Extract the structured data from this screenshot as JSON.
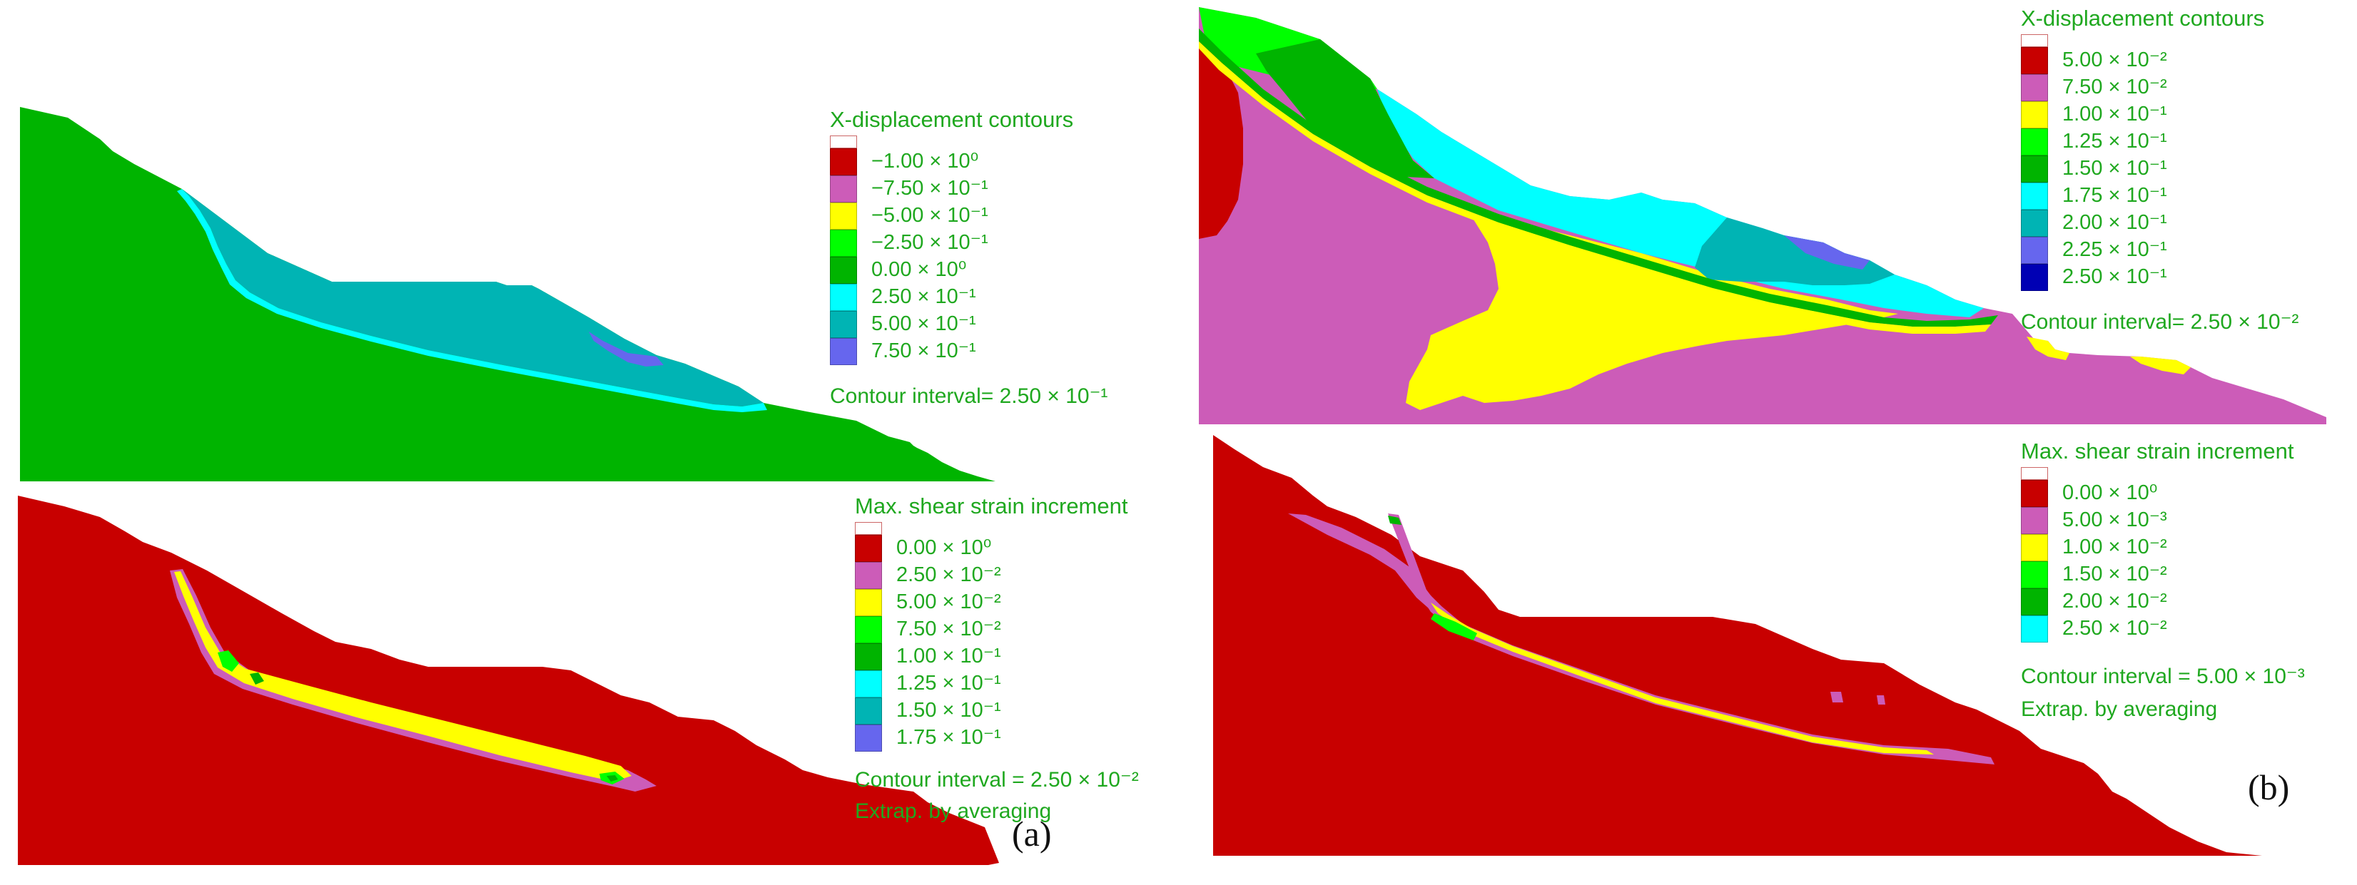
{
  "colors": {
    "white": "#ffffff",
    "pink_top": "#f07070",
    "red": "#c80000",
    "magenta": "#cc5cb8",
    "yellow": "#ffff00",
    "lime": "#00ff00",
    "green": "#00b400",
    "cyan": "#00ffff",
    "teal": "#00b4b4",
    "blue_violet": "#6666ee",
    "navy": "#0000b4",
    "legend_text": "#1fa81f"
  },
  "panels": {
    "a": {
      "label": "(a)",
      "top": {
        "legend": {
          "title": "X-displacement contours",
          "items": [
            {
              "label": "−1.00 × 10⁰",
              "color": "#c80000"
            },
            {
              "label": "−7.50 × 10⁻¹",
              "color": "#cc5cb8"
            },
            {
              "label": "−5.00 × 10⁻¹",
              "color": "#ffff00"
            },
            {
              "label": "−2.50 × 10⁻¹",
              "color": "#00ff00"
            },
            {
              "label": "0.00 × 10⁰",
              "color": "#00b400"
            },
            {
              "label": "2.50 × 10⁻¹",
              "color": "#00ffff"
            },
            {
              "label": "5.00 × 10⁻¹",
              "color": "#00b4b4"
            },
            {
              "label": "7.50 × 10⁻¹",
              "color": "#6666ee"
            }
          ],
          "interval": "Contour interval=  2.50 × 10⁻¹"
        }
      },
      "bottom": {
        "legend": {
          "title": "Max. shear strain increment",
          "items": [
            {
              "label": "0.00 × 10⁰",
              "color": "#c80000"
            },
            {
              "label": "2.50 × 10⁻²",
              "color": "#cc5cb8"
            },
            {
              "label": "5.00 × 10⁻²",
              "color": "#ffff00"
            },
            {
              "label": "7.50 × 10⁻²",
              "color": "#00ff00"
            },
            {
              "label": "1.00 × 10⁻¹",
              "color": "#00b400"
            },
            {
              "label": "1.25 × 10⁻¹",
              "color": "#00ffff"
            },
            {
              "label": "1.50 × 10⁻¹",
              "color": "#00b4b4"
            },
            {
              "label": "1.75 × 10⁻¹",
              "color": "#6666ee"
            }
          ],
          "interval": "Contour interval = 2.50 × 10⁻²",
          "extra": "Extrap. by averaging"
        }
      }
    },
    "b": {
      "label": "(b)",
      "top": {
        "legend": {
          "title": "X-displacement contours",
          "items": [
            {
              "label": "5.00 × 10⁻²",
              "color": "#c80000"
            },
            {
              "label": "7.50 × 10⁻²",
              "color": "#cc5cb8"
            },
            {
              "label": "1.00 × 10⁻¹",
              "color": "#ffff00"
            },
            {
              "label": "1.25 × 10⁻¹",
              "color": "#00ff00"
            },
            {
              "label": "1.50 × 10⁻¹",
              "color": "#00b400"
            },
            {
              "label": "1.75 × 10⁻¹",
              "color": "#00ffff"
            },
            {
              "label": "2.00 × 10⁻¹",
              "color": "#00b4b4"
            },
            {
              "label": "2.25 × 10⁻¹",
              "color": "#6666ee"
            },
            {
              "label": "2.50 × 10⁻¹",
              "color": "#0000b4"
            }
          ],
          "interval": "Contour interval=  2.50 × 10⁻²"
        }
      },
      "bottom": {
        "legend": {
          "title": "Max. shear strain increment",
          "items": [
            {
              "label": "0.00 × 10⁰",
              "color": "#c80000"
            },
            {
              "label": "5.00 × 10⁻³",
              "color": "#cc5cb8"
            },
            {
              "label": "1.00 × 10⁻²",
              "color": "#ffff00"
            },
            {
              "label": "1.50 × 10⁻²",
              "color": "#00ff00"
            },
            {
              "label": "2.00 × 10⁻²",
              "color": "#00b400"
            },
            {
              "label": "2.50 × 10⁻²",
              "color": "#00ffff"
            }
          ],
          "interval": "Contour interval = 5.00 × 10⁻³",
          "extra": "Extrap. by averaging"
        }
      }
    }
  }
}
